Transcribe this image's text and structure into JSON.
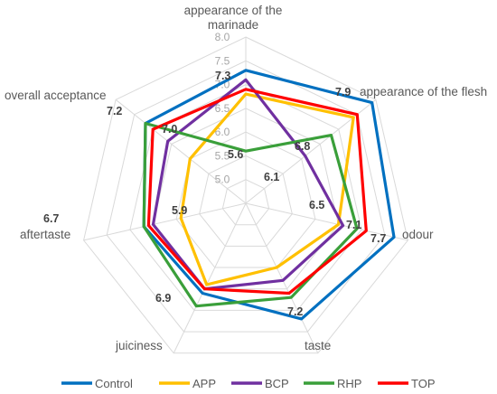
{
  "chart_data": {
    "type": "radar",
    "axes": [
      "appearance of the marinade",
      "appearance of the flesh",
      "odour",
      "taste",
      "juiciness",
      "aftertaste",
      "overall acceptance"
    ],
    "axis_label_lines": [
      [
        "appearance of the",
        "marinade"
      ],
      [
        "appearance of the flesh"
      ],
      [
        "odour"
      ],
      [
        "taste"
      ],
      [
        "juiciness"
      ],
      [
        "aftertaste"
      ],
      [
        "overall acceptance"
      ]
    ],
    "rmin": 4.5,
    "rmax": 8.0,
    "ticks": [
      "5.0",
      "5.5",
      "6.0",
      "6.5",
      "7.0",
      "7.5",
      "8.0"
    ],
    "tick_values": [
      5.0,
      5.5,
      6.0,
      6.5,
      7.0,
      7.5,
      8.0
    ],
    "grid": true,
    "legend_position": "bottom",
    "series": [
      {
        "name": "Control",
        "color": "#0070C0",
        "values": [
          7.3,
          7.9,
          7.7,
          7.2,
          6.6,
          6.7,
          7.2
        ]
      },
      {
        "name": "APP",
        "color": "#FFC000",
        "values": [
          6.8,
          7.4,
          6.5,
          6.0,
          6.4,
          5.9,
          6.0
        ]
      },
      {
        "name": "BCP",
        "color": "#7030A0",
        "values": [
          7.1,
          6.1,
          6.6,
          6.3,
          6.5,
          6.5,
          6.6
        ]
      },
      {
        "name": "RHP",
        "color": "#3A9F3A",
        "values": [
          5.6,
          6.8,
          6.9,
          6.7,
          6.9,
          6.7,
          7.2
        ]
      },
      {
        "name": "TOP",
        "color": "#FF0000",
        "values": [
          6.9,
          7.5,
          7.1,
          6.6,
          6.5,
          6.6,
          7.0
        ]
      }
    ],
    "data_labels": [
      {
        "text": "7.3",
        "axis": 0,
        "value": 7.3
      },
      {
        "text": "7.9",
        "axis": 1,
        "value": 7.9
      },
      {
        "text": "7.7",
        "axis": 2,
        "value": 7.7
      },
      {
        "text": "7.2",
        "axis": 3,
        "value": 7.2
      },
      {
        "text": "6.9",
        "axis": 4,
        "value": 6.9
      },
      {
        "text": "6.7",
        "axis": 5,
        "value": 6.7
      },
      {
        "text": "7.2",
        "axis": 6,
        "value": 7.2
      },
      {
        "text": "5.6",
        "axis": 0,
        "value": 5.6
      },
      {
        "text": "6.1",
        "axis": 1,
        "value": 6.1
      },
      {
        "text": "6.8",
        "axis": 1,
        "value": 6.8
      },
      {
        "text": "6.5",
        "axis": 2,
        "value": 6.5
      },
      {
        "text": "7.1",
        "axis": 2,
        "value": 7.1
      },
      {
        "text": "5.9",
        "axis": 5,
        "value": 5.9
      },
      {
        "text": "7.0",
        "axis": 6,
        "value": 7.0
      }
    ]
  }
}
